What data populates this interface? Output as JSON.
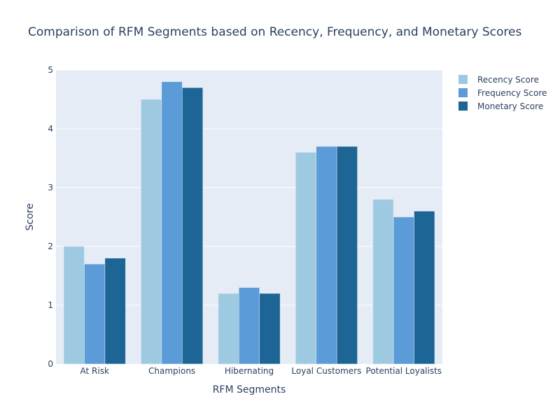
{
  "chart_data": {
    "type": "bar",
    "title": "Comparison of RFM Segments based on Recency, Frequency, and Monetary Scores",
    "xlabel": "RFM Segments",
    "ylabel": "Score",
    "categories": [
      "At Risk",
      "Champions",
      "Hibernating",
      "Loyal Customers",
      "Potential Loyalists"
    ],
    "ylim": [
      0,
      5
    ],
    "yticks": [
      0,
      1,
      2,
      3,
      4,
      5
    ],
    "grid": true,
    "legend_position": "top-right",
    "plot_bg": "#e5ecf6",
    "series": [
      {
        "name": "Recency Score",
        "color": "#9ecae1",
        "values": [
          2.0,
          4.5,
          1.2,
          3.6,
          2.8
        ]
      },
      {
        "name": "Frequency Score",
        "color": "#5b9bd8",
        "values": [
          1.7,
          4.8,
          1.3,
          3.7,
          2.5
        ]
      },
      {
        "name": "Monetary Score",
        "color": "#1c6595",
        "values": [
          1.8,
          4.7,
          1.2,
          3.7,
          2.6
        ]
      }
    ]
  }
}
